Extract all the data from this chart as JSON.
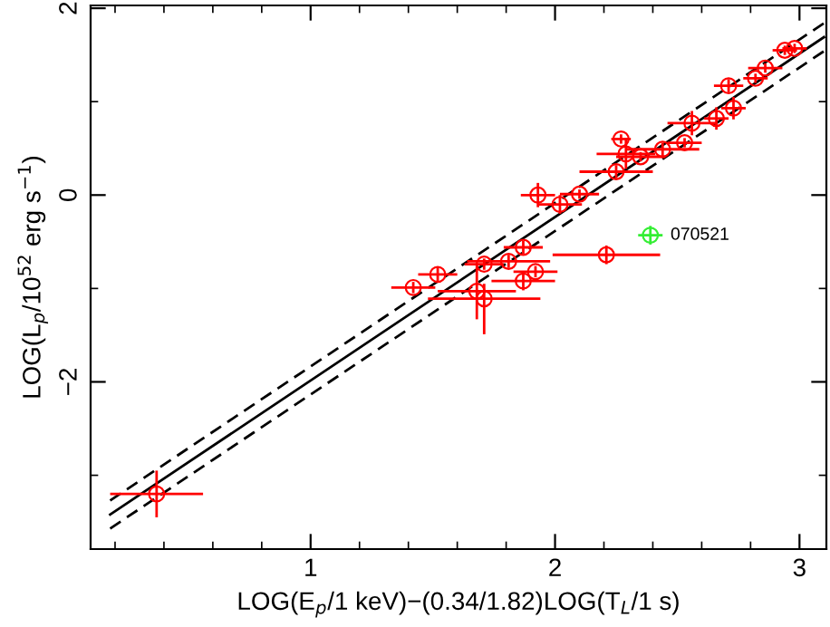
{
  "chart_data": {
    "type": "scatter",
    "xlabel": "LOG(E$_{p}$/1 keV)−(0.34/1.82)LOG(T$_{L}$/1 s)",
    "ylabel": "LOG(L$_{p}$/10$^{52}$ erg s$^{−1}$)",
    "xlim": [
      0.1,
      3.11
    ],
    "ylim": [
      -3.79,
      2.03
    ],
    "xticks": [
      1,
      2,
      3
    ],
    "yticks": [
      -2,
      0,
      2
    ],
    "grid": false,
    "legend": false,
    "marker": "circle",
    "annotations": [
      {
        "text": "070521",
        "x": 2.39,
        "y": -0.43
      }
    ],
    "series": [
      {
        "color": "#ff0000",
        "x": [
          2.98,
          2.94,
          2.86,
          2.82,
          2.71,
          2.73,
          2.66,
          2.56,
          2.53,
          2.44,
          2.35,
          2.27,
          2.29,
          2.25,
          2.1,
          2.02,
          1.93,
          2.21,
          1.87,
          1.81,
          1.71,
          1.92,
          1.87,
          1.52,
          1.42,
          1.68,
          1.71,
          0.37
        ],
        "values": [
          1.57,
          1.55,
          1.36,
          1.25,
          1.17,
          0.93,
          0.82,
          0.77,
          0.56,
          0.49,
          0.41,
          0.6,
          0.44,
          0.25,
          0.01,
          -0.1,
          0.0,
          -0.64,
          -0.56,
          -0.71,
          -0.74,
          -0.82,
          -0.92,
          -0.85,
          -0.99,
          -1.03,
          -1.11,
          -3.2
        ],
        "xerrors": [
          0.05,
          0.05,
          0.07,
          0.05,
          0.06,
          0.05,
          0.05,
          0.1,
          0.07,
          0.15,
          0.1,
          0.04,
          0.12,
          0.15,
          0.08,
          0.09,
          0.07,
          0.22,
          0.08,
          0.17,
          0.08,
          0.09,
          0.13,
          0.08,
          0.09,
          0.16,
          0.23,
          0.19
        ],
        "errors": [
          0.05,
          0.05,
          0.05,
          0.05,
          0.07,
          0.12,
          0.12,
          0.13,
          0.05,
          0.07,
          0.05,
          0.05,
          0.16,
          0.07,
          0.05,
          0.1,
          0.13,
          0.1,
          0.07,
          0.07,
          0.06,
          0.06,
          0.1,
          0.08,
          0.06,
          0.3,
          [
            -1.49,
            -0.95
          ],
          0.25
        ]
      },
      {
        "color": "#33ee33",
        "x": [
          2.39
        ],
        "values": [
          -0.43
        ],
        "xerrors": [
          0.05
        ],
        "errors": [
          0.1
        ]
      },
      {
        "type": "line",
        "color": "#000000",
        "line_style": "solid",
        "marker": "none",
        "x": [
          0.18,
          3.1
        ],
        "values": [
          -3.42,
          1.69
        ]
      },
      {
        "type": "line",
        "color": "#000000",
        "line_style": "dashed",
        "marker": "none",
        "x": [
          0.18,
          3.1
        ],
        "values": [
          -3.27,
          1.84
        ]
      },
      {
        "type": "line",
        "color": "#000000",
        "line_style": "dashed",
        "marker": "none",
        "x": [
          0.18,
          3.1
        ],
        "values": [
          -3.57,
          1.54
        ]
      }
    ]
  }
}
